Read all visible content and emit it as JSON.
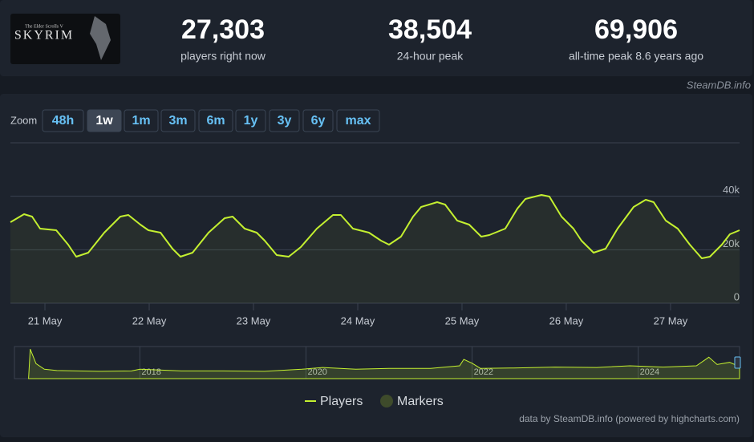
{
  "logo": {
    "subtitle": "The Elder Scrolls V",
    "title": "SKYRIM"
  },
  "stats": [
    {
      "value": "27,303",
      "label": "players right now"
    },
    {
      "value": "38,504",
      "label": "24-hour peak"
    },
    {
      "value": "69,906",
      "label": "all-time peak 8.6 years ago"
    }
  ],
  "brand": "SteamDB.info",
  "zoom": {
    "label": "Zoom",
    "buttons": [
      "48h",
      "1w",
      "1m",
      "3m",
      "6m",
      "1y",
      "3y",
      "6y",
      "max"
    ],
    "active": "1w"
  },
  "credits": "data by SteamDB.info (powered by highcharts.com)",
  "chart_data": [
    {
      "type": "line",
      "x": [
        20.669,
        20.8,
        20.877,
        20.954,
        21.108,
        21.223,
        21.3,
        21.415,
        21.569,
        21.723,
        21.8,
        21.915,
        21.992,
        22.108,
        22.223,
        22.3,
        22.415,
        22.569,
        22.723,
        22.8,
        22.915,
        23.031,
        23.108,
        23.223,
        23.338,
        23.454,
        23.608,
        23.762,
        23.838,
        23.954,
        24.108,
        24.223,
        24.3,
        24.415,
        24.531,
        24.608,
        24.762,
        24.838,
        24.954,
        25.069,
        25.185,
        25.262,
        25.415,
        25.531,
        25.608,
        25.762,
        25.838,
        25.954,
        26.069,
        26.146,
        26.262,
        26.377,
        26.492,
        26.646,
        26.762,
        26.838,
        26.954,
        27.069,
        27.185,
        27.3,
        27.377,
        27.492,
        27.569,
        27.662
      ],
      "series": [
        {
          "name": "Players",
          "color": "#c4f030",
          "values": [
            30300,
            33300,
            32400,
            27900,
            27300,
            21900,
            17400,
            18900,
            26400,
            32400,
            33000,
            29400,
            27300,
            26400,
            20400,
            17400,
            18900,
            26400,
            31800,
            32400,
            27900,
            26400,
            23400,
            18000,
            17400,
            21000,
            27900,
            33000,
            33000,
            27900,
            26400,
            23400,
            21900,
            24900,
            32400,
            36000,
            37800,
            36900,
            30900,
            29400,
            24900,
            25500,
            27900,
            35400,
            39000,
            40500,
            39900,
            32400,
            27900,
            23400,
            18900,
            20400,
            27900,
            36000,
            38700,
            37800,
            30900,
            27900,
            21900,
            16800,
            17400,
            21900,
            25800,
            27300
          ]
        }
      ],
      "markers_legend": {
        "name": "Markers",
        "color": "#3e4b2b"
      },
      "xlim": [
        20.669,
        27.662
      ],
      "xticks": [
        {
          "value": 21,
          "label": "21 May"
        },
        {
          "value": 22,
          "label": "22 May"
        },
        {
          "value": 23,
          "label": "23 May"
        },
        {
          "value": 24,
          "label": "24 May"
        },
        {
          "value": 25,
          "label": "25 May"
        },
        {
          "value": 26,
          "label": "26 May"
        },
        {
          "value": 27,
          "label": "27 May"
        }
      ],
      "ylim": [
        0,
        60000
      ],
      "yticks": [
        0,
        {
          "value": 20000,
          "label": "20k"
        },
        {
          "value": 40000,
          "label": "40k"
        }
      ],
      "grid": true
    },
    {
      "type": "area",
      "x": [
        2016.66,
        2016.68,
        2016.75,
        2016.85,
        2017.0,
        2017.5,
        2017.9,
        2018.0,
        2018.5,
        2019.0,
        2019.5,
        2019.95,
        2020.2,
        2020.6,
        2021.0,
        2021.5,
        2021.85,
        2021.9,
        2022.0,
        2022.1,
        2022.5,
        2023.0,
        2023.5,
        2023.9,
        2024.3,
        2024.7,
        2024.85,
        2024.95,
        2025.1,
        2025.22
      ],
      "values": [
        0,
        69000,
        35000,
        22000,
        19000,
        17000,
        18000,
        22000,
        18000,
        18000,
        17000,
        22000,
        26000,
        22000,
        24000,
        24000,
        30000,
        45000,
        36000,
        24000,
        25000,
        27000,
        26000,
        30000,
        27000,
        30000,
        50000,
        33000,
        38000,
        28000
      ],
      "color": "#c4f030",
      "xlim": [
        2016.49,
        2025.22
      ],
      "xticks": [
        2018,
        2020,
        2022,
        2024
      ],
      "ylim": [
        0,
        75000
      ]
    }
  ]
}
